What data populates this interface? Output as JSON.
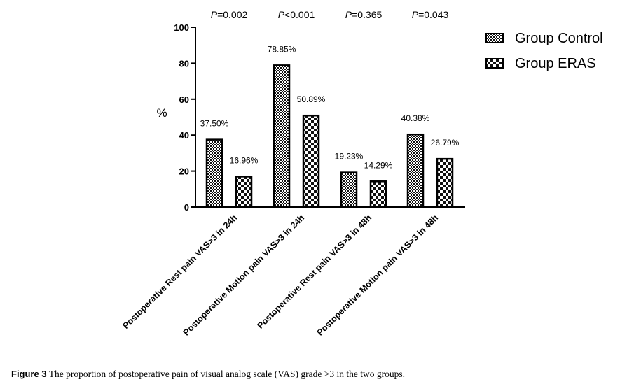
{
  "chart_data": {
    "type": "bar",
    "ylabel": "%",
    "ylim": [
      0,
      100
    ],
    "yticks": [
      0,
      20,
      40,
      60,
      80,
      100
    ],
    "categories": [
      "Postoperative Rest pain VAS>3 in 24h",
      "Postoperative Motion pain VAS>3 in 24h",
      "Postoperative Rest pain VAS>3 in 48h",
      "Postoperative Motion pain VAS>3 in 48h"
    ],
    "series": [
      {
        "name": "Group Control",
        "values": [
          37.5,
          78.85,
          19.23,
          40.38
        ],
        "labels": [
          "37.50%",
          "78.85%",
          "19.23%",
          "40.38%"
        ],
        "pattern": "fine-checker"
      },
      {
        "name": "Group ERAS",
        "values": [
          16.96,
          50.89,
          14.29,
          26.79
        ],
        "labels": [
          "16.96%",
          "50.89%",
          "14.29%",
          "26.79%"
        ],
        "pattern": "coarse-checker"
      }
    ],
    "p_values": [
      {
        "prefix": "P",
        "text": "=0.002"
      },
      {
        "prefix": "P",
        "text": "<0.001"
      },
      {
        "prefix": "P",
        "text": "=0.365"
      },
      {
        "prefix": "P",
        "text": "=0.043"
      }
    ],
    "legend_position": "top-right",
    "grid": false
  },
  "caption": {
    "figure_label": "Figure 3",
    "text": "The proportion of postoperative pain of visual analog scale (VAS) grade >3 in the two groups."
  }
}
